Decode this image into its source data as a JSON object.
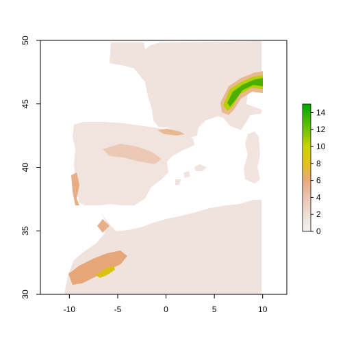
{
  "chart_data": {
    "type": "heatmap",
    "title": "",
    "xlabel": "",
    "ylabel": "",
    "xlim": [
      -13,
      12.5
    ],
    "ylim": [
      30,
      50
    ],
    "x_ticks": [
      -10,
      -5,
      0,
      5,
      10
    ],
    "x_tick_labels": [
      "-10",
      "-5",
      "0",
      "5",
      "10"
    ],
    "y_ticks": [
      30,
      35,
      40,
      45,
      50
    ],
    "y_tick_labels": [
      "30",
      "35",
      "40",
      "45",
      "50"
    ],
    "legend": {
      "placement": "right",
      "min": 0,
      "max": 15,
      "ticks": [
        0,
        2,
        4,
        6,
        8,
        10,
        12,
        14
      ],
      "tick_labels": [
        "0",
        "2",
        "4",
        "6",
        "8",
        "10",
        "12",
        "14"
      ],
      "colors": [
        "#f2f2f2",
        "#eedfd7",
        "#ecc4b0",
        "#e8a97e",
        "#e4c11c",
        "#c8d400",
        "#6fc300",
        "#00a600"
      ]
    }
  }
}
